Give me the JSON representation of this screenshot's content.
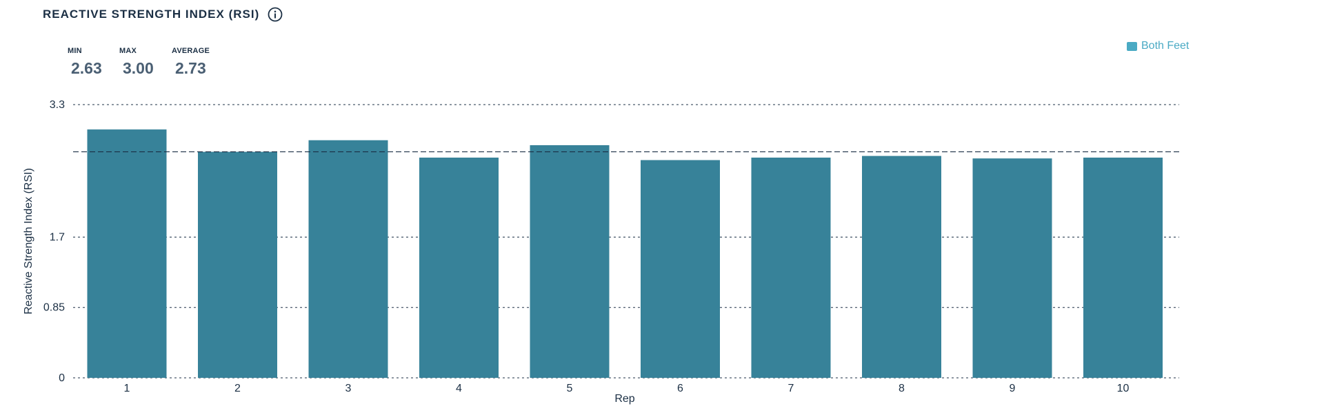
{
  "header": {
    "title": "REACTIVE STRENGTH INDEX (RSI)",
    "info_icon": "info-icon"
  },
  "stats": [
    {
      "label": "MIN",
      "value": "2.63"
    },
    {
      "label": "MAX",
      "value": "3.00"
    },
    {
      "label": "AVERAGE",
      "value": "2.73"
    }
  ],
  "legend": {
    "label": "Both Feet",
    "color": "#4aaac4"
  },
  "chart_data": {
    "type": "bar",
    "categories": [
      "1",
      "2",
      "3",
      "4",
      "5",
      "6",
      "7",
      "8",
      "9",
      "10"
    ],
    "series": [
      {
        "name": "Both Feet",
        "values": [
          3.0,
          2.73,
          2.87,
          2.66,
          2.81,
          2.63,
          2.66,
          2.68,
          2.65,
          2.66
        ],
        "color": "#378299"
      }
    ],
    "average_line": 2.73,
    "xlabel": "Rep",
    "ylabel": "Reactive Strength Index (RSI)",
    "ylim": [
      0,
      3.3
    ],
    "yticks": [
      0,
      0.85,
      1.7,
      3.3
    ],
    "ytick_labels": [
      "0",
      "0.85",
      "1.7",
      "3.3"
    ],
    "grid": true,
    "legend_position": "top-right"
  }
}
